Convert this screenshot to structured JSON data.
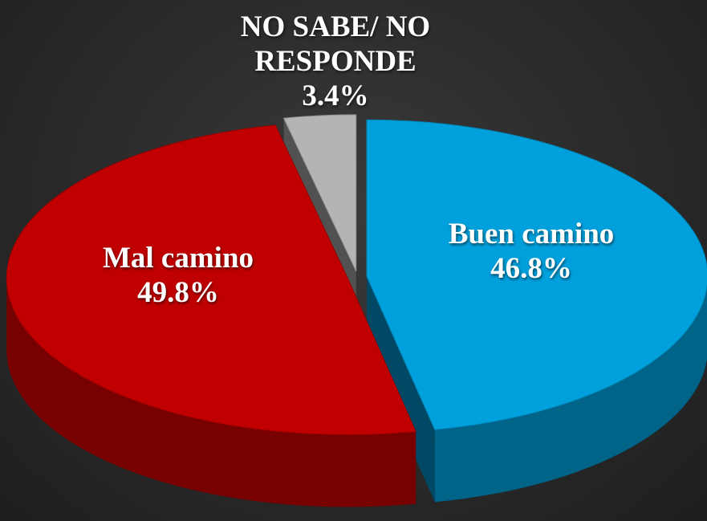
{
  "chart_data": {
    "type": "pie",
    "categories": [
      "Buen camino",
      "Mal camino",
      "NO SABE/ NO RESPONDE"
    ],
    "values": [
      46.8,
      49.8,
      3.4
    ],
    "value_labels": [
      "46.8%",
      "49.8%",
      "3.4%"
    ],
    "colors": [
      "#00a0dc",
      "#c00000",
      "#b4b4b4"
    ]
  }
}
